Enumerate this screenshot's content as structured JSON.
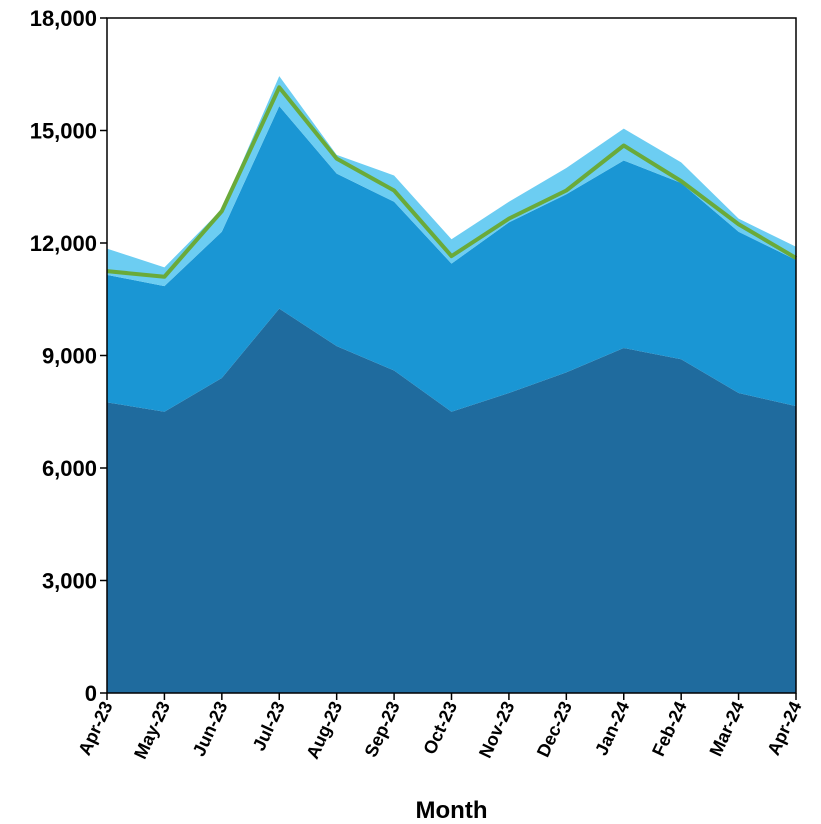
{
  "chart_data": {
    "type": "area",
    "stacked": true,
    "xlabel": "Month",
    "ylabel": "",
    "categories": [
      "Apr-23",
      "May-23",
      "Jun-23",
      "Jul-23",
      "Aug-23",
      "Sep-23",
      "Oct-23",
      "Nov-23",
      "Dec-23",
      "Jan-24",
      "Feb-24",
      "Mar-24",
      "Apr-24"
    ],
    "ylim": [
      0,
      18000
    ],
    "yticks": [
      0,
      3000,
      6000,
      9000,
      12000,
      15000,
      18000
    ],
    "ytick_labels": [
      "0",
      "3,000",
      "6,000",
      "9,000",
      "12,000",
      "15,000",
      "18,000"
    ],
    "grid": false,
    "series": [
      {
        "values": [
          7750,
          7500,
          8400,
          10250,
          9250,
          8600,
          7500,
          8000,
          8550,
          9200,
          8900,
          8000,
          7650
        ],
        "color": "#1f6b9e"
      },
      {
        "values": [
          3400,
          3350,
          3900,
          5400,
          4600,
          4500,
          3950,
          4550,
          4750,
          5000,
          4700,
          4300,
          3900
        ],
        "color": "#1a96d4"
      },
      {
        "values": [
          700,
          500,
          600,
          800,
          500,
          700,
          650,
          550,
          700,
          850,
          550,
          350,
          350
        ],
        "color": "#6ccdf2"
      }
    ],
    "line": {
      "values": [
        11250,
        11100,
        12850,
        16150,
        14250,
        13400,
        11650,
        12650,
        13400,
        14600,
        13650,
        12500,
        11600
      ],
      "color": "#6aaa3a"
    }
  }
}
